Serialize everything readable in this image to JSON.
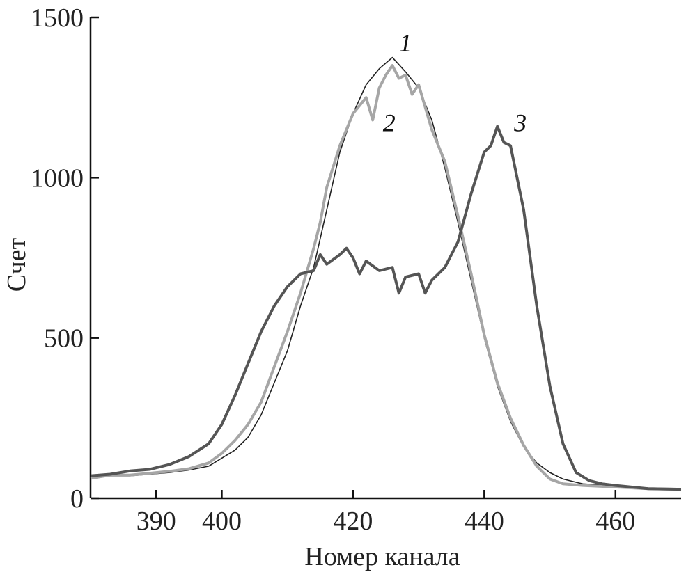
{
  "chart_data": {
    "type": "line",
    "title": "",
    "xlabel": "Номер канала",
    "ylabel": "Счет",
    "xlim": [
      380,
      470
    ],
    "ylim": [
      0,
      1500
    ],
    "xticks": [
      390,
      400,
      420,
      440,
      460
    ],
    "yticks": [
      0,
      500,
      1000,
      1500
    ],
    "grid": false,
    "legend": "none",
    "series": [
      {
        "name": "1",
        "color": "#222222",
        "width": 1.6,
        "points": [
          [
            380,
            65
          ],
          [
            383,
            70
          ],
          [
            386,
            70
          ],
          [
            389,
            75
          ],
          [
            392,
            80
          ],
          [
            395,
            88
          ],
          [
            398,
            100
          ],
          [
            400,
            125
          ],
          [
            402,
            150
          ],
          [
            404,
            190
          ],
          [
            406,
            260
          ],
          [
            408,
            360
          ],
          [
            410,
            460
          ],
          [
            412,
            600
          ],
          [
            414,
            720
          ],
          [
            416,
            900
          ],
          [
            418,
            1080
          ],
          [
            420,
            1200
          ],
          [
            422,
            1290
          ],
          [
            424,
            1340
          ],
          [
            426,
            1375
          ],
          [
            428,
            1330
          ],
          [
            430,
            1280
          ],
          [
            432,
            1180
          ],
          [
            434,
            1030
          ],
          [
            436,
            860
          ],
          [
            438,
            680
          ],
          [
            440,
            500
          ],
          [
            442,
            350
          ],
          [
            444,
            240
          ],
          [
            446,
            160
          ],
          [
            448,
            110
          ],
          [
            450,
            80
          ],
          [
            452,
            60
          ],
          [
            455,
            45
          ],
          [
            460,
            38
          ],
          [
            465,
            32
          ],
          [
            470,
            25
          ]
        ]
      },
      {
        "name": "2",
        "color": "#a6a6a6",
        "width": 4,
        "points": [
          [
            380,
            62
          ],
          [
            383,
            72
          ],
          [
            386,
            72
          ],
          [
            389,
            78
          ],
          [
            392,
            84
          ],
          [
            395,
            92
          ],
          [
            398,
            110
          ],
          [
            400,
            140
          ],
          [
            402,
            180
          ],
          [
            404,
            230
          ],
          [
            406,
            300
          ],
          [
            408,
            410
          ],
          [
            410,
            520
          ],
          [
            412,
            640
          ],
          [
            414,
            780
          ],
          [
            415,
            860
          ],
          [
            416,
            970
          ],
          [
            418,
            1100
          ],
          [
            420,
            1200
          ],
          [
            422,
            1250
          ],
          [
            423,
            1180
          ],
          [
            424,
            1280
          ],
          [
            425,
            1320
          ],
          [
            426,
            1350
          ],
          [
            427,
            1310
          ],
          [
            428,
            1320
          ],
          [
            429,
            1260
          ],
          [
            430,
            1290
          ],
          [
            432,
            1150
          ],
          [
            434,
            1050
          ],
          [
            436,
            880
          ],
          [
            438,
            700
          ],
          [
            440,
            510
          ],
          [
            442,
            360
          ],
          [
            444,
            250
          ],
          [
            446,
            165
          ],
          [
            448,
            100
          ],
          [
            450,
            60
          ],
          [
            452,
            45
          ],
          [
            455,
            40
          ],
          [
            460,
            35
          ],
          [
            465,
            30
          ],
          [
            470,
            28
          ]
        ]
      },
      {
        "name": "3",
        "color": "#555555",
        "width": 4,
        "points": [
          [
            380,
            70
          ],
          [
            383,
            75
          ],
          [
            386,
            85
          ],
          [
            389,
            90
          ],
          [
            392,
            105
          ],
          [
            395,
            130
          ],
          [
            398,
            170
          ],
          [
            400,
            230
          ],
          [
            402,
            320
          ],
          [
            404,
            420
          ],
          [
            406,
            520
          ],
          [
            408,
            600
          ],
          [
            410,
            660
          ],
          [
            412,
            700
          ],
          [
            414,
            710
          ],
          [
            415,
            760
          ],
          [
            416,
            730
          ],
          [
            418,
            760
          ],
          [
            419,
            780
          ],
          [
            420,
            750
          ],
          [
            421,
            700
          ],
          [
            422,
            740
          ],
          [
            424,
            710
          ],
          [
            426,
            720
          ],
          [
            427,
            640
          ],
          [
            428,
            690
          ],
          [
            430,
            700
          ],
          [
            431,
            640
          ],
          [
            432,
            680
          ],
          [
            434,
            720
          ],
          [
            436,
            800
          ],
          [
            438,
            950
          ],
          [
            440,
            1080
          ],
          [
            441,
            1100
          ],
          [
            442,
            1160
          ],
          [
            443,
            1110
          ],
          [
            444,
            1100
          ],
          [
            446,
            900
          ],
          [
            448,
            600
          ],
          [
            450,
            350
          ],
          [
            452,
            170
          ],
          [
            454,
            80
          ],
          [
            456,
            55
          ],
          [
            458,
            45
          ],
          [
            460,
            40
          ],
          [
            465,
            30
          ],
          [
            470,
            28
          ]
        ]
      }
    ],
    "annotations": [
      {
        "text": "1",
        "x": 428,
        "y": 1395
      },
      {
        "text": "2",
        "x": 425.5,
        "y": 1145
      },
      {
        "text": "3",
        "x": 445.5,
        "y": 1145
      }
    ]
  }
}
